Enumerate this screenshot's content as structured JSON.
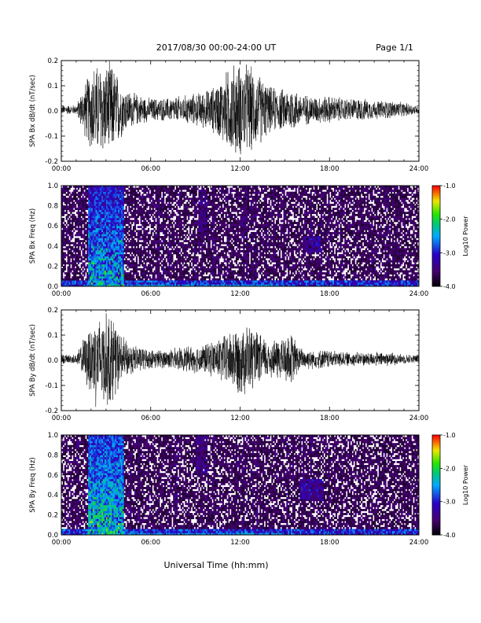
{
  "header": {
    "title": "2017/08/30  00:00-24:00 UT",
    "page": "Page 1/1"
  },
  "xlabel": "Universal Time (hh:mm)",
  "chart_data": [
    {
      "type": "line",
      "ylabel": "SPA Bx dB/dt (nT/sec)",
      "xlim": [
        0,
        24
      ],
      "ylim": [
        -0.2,
        0.2
      ],
      "xticks": [
        "00:00",
        "06:00",
        "12:00",
        "18:00",
        "24:00"
      ],
      "yticks": [
        "-0.2",
        "-0.1",
        "0.0",
        "0.1",
        "0.2"
      ],
      "series": [
        {
          "x": [
            0,
            1,
            1.8,
            2.2,
            2.6,
            3.0,
            3.4,
            3.8,
            4.2,
            4.6,
            5.0,
            5.5,
            6.0,
            7.0,
            8.0,
            9.0,
            10.0,
            10.5,
            11.0,
            11.5,
            12.0,
            12.5,
            13.0,
            13.5,
            14.0,
            15.0,
            15.5,
            16.0,
            17.0,
            18.0,
            19.0,
            20.0,
            21.0,
            22.0,
            23.0,
            24.0
          ],
          "amplitude": [
            0.02,
            0.02,
            0.15,
            0.2,
            0.2,
            0.2,
            0.2,
            0.15,
            0.1,
            0.08,
            0.07,
            0.06,
            0.05,
            0.05,
            0.06,
            0.07,
            0.09,
            0.12,
            0.16,
            0.2,
            0.2,
            0.2,
            0.17,
            0.14,
            0.1,
            0.09,
            0.1,
            0.07,
            0.06,
            0.06,
            0.05,
            0.05,
            0.04,
            0.04,
            0.03,
            0.02
          ]
        }
      ]
    },
    {
      "type": "heatmap",
      "ylabel": "SPA Bx Freq (Hz)",
      "xlim": [
        0,
        24
      ],
      "ylim": [
        0.0,
        1.0
      ],
      "xticks": [
        "00:00",
        "06:00",
        "12:00",
        "18:00",
        "24:00"
      ],
      "yticks": [
        "0.0",
        "0.2",
        "0.4",
        "0.6",
        "0.8",
        "1.0"
      ],
      "colorbar": {
        "label": "Log10 Power",
        "ticks": [
          "-1.0",
          "-2.0",
          "-3.0",
          "-4.0"
        ],
        "range": [
          -4.0,
          -1.0
        ]
      },
      "features": [
        {
          "name": "band",
          "t_start": 1.8,
          "t_end": 4.2,
          "f_max": 1.0,
          "level": -2.6
        },
        {
          "name": "burst",
          "t_start": 9.2,
          "t_end": 9.8,
          "f_min": 0.5,
          "f_max": 0.95,
          "level": -3.2
        },
        {
          "name": "burst",
          "t_start": 12.0,
          "t_end": 12.4,
          "f_min": 0.55,
          "f_max": 0.8,
          "level": -3.4
        },
        {
          "name": "burst",
          "t_start": 16.2,
          "t_end": 17.4,
          "f_min": 0.35,
          "f_max": 0.5,
          "level": -3.0
        }
      ]
    },
    {
      "type": "line",
      "ylabel": "SPA By dB/dt (nT/sec)",
      "xlim": [
        0,
        24
      ],
      "ylim": [
        -0.2,
        0.2
      ],
      "xticks": [
        "00:00",
        "06:00",
        "12:00",
        "18:00",
        "24:00"
      ],
      "yticks": [
        "-0.2",
        "-0.1",
        "0.0",
        "0.1",
        "0.2"
      ],
      "series": [
        {
          "x": [
            0,
            1,
            1.8,
            2.2,
            2.6,
            3.0,
            3.4,
            3.8,
            4.2,
            4.6,
            5.0,
            5.5,
            6.0,
            7.0,
            8.0,
            9.0,
            10.0,
            10.5,
            11.0,
            11.5,
            12.0,
            12.5,
            13.0,
            13.5,
            14.0,
            15.0,
            15.5,
            16.0,
            17.0,
            18.0,
            19.0,
            20.0,
            21.0,
            22.0,
            23.0,
            24.0
          ],
          "amplitude": [
            0.02,
            0.02,
            0.13,
            0.2,
            0.2,
            0.2,
            0.2,
            0.13,
            0.09,
            0.07,
            0.06,
            0.05,
            0.04,
            0.04,
            0.05,
            0.06,
            0.07,
            0.09,
            0.11,
            0.13,
            0.15,
            0.16,
            0.12,
            0.1,
            0.08,
            0.1,
            0.11,
            0.05,
            0.04,
            0.04,
            0.03,
            0.03,
            0.03,
            0.03,
            0.02,
            0.02
          ]
        }
      ]
    },
    {
      "type": "heatmap",
      "ylabel": "SPA By Freq (Hz)",
      "xlim": [
        0,
        24
      ],
      "ylim": [
        0.0,
        1.0
      ],
      "xticks": [
        "00:00",
        "06:00",
        "12:00",
        "18:00",
        "24:00"
      ],
      "yticks": [
        "0.0",
        "0.2",
        "0.4",
        "0.6",
        "0.8",
        "1.0"
      ],
      "colorbar": {
        "label": "Log10 Power",
        "ticks": [
          "-1.0",
          "-2.0",
          "-3.0",
          "-4.0"
        ],
        "range": [
          -4.0,
          -1.0
        ]
      },
      "features": [
        {
          "name": "band",
          "t_start": 1.8,
          "t_end": 4.2,
          "f_max": 1.0,
          "level": -2.4
        },
        {
          "name": "burst",
          "t_start": 9.0,
          "t_end": 9.8,
          "f_min": 0.6,
          "f_max": 1.0,
          "level": -3.2
        },
        {
          "name": "burst",
          "t_start": 11.9,
          "t_end": 12.4,
          "f_min": 0.6,
          "f_max": 0.8,
          "level": -3.4
        },
        {
          "name": "burst",
          "t_start": 16.0,
          "t_end": 17.6,
          "f_min": 0.35,
          "f_max": 0.55,
          "level": -3.0
        }
      ]
    }
  ]
}
